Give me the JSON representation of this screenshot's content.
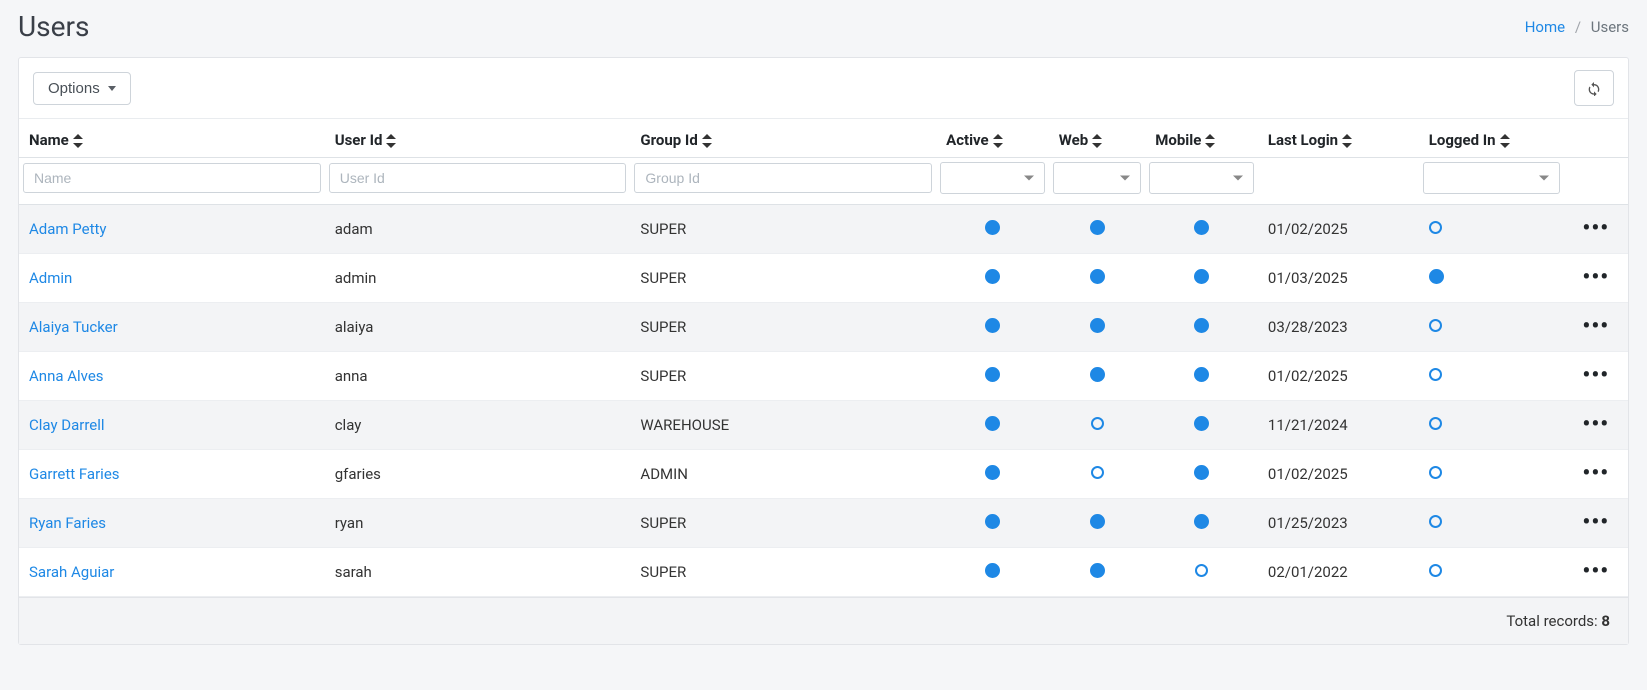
{
  "page": {
    "title": "Users"
  },
  "breadcrumb": {
    "home": "Home",
    "current": "Users"
  },
  "toolbar": {
    "options_label": "Options"
  },
  "table": {
    "columns": {
      "name": "Name",
      "user_id": "User Id",
      "group_id": "Group Id",
      "active": "Active",
      "web": "Web",
      "mobile": "Mobile",
      "last_login": "Last Login",
      "logged_in": "Logged In"
    },
    "filter_placeholders": {
      "name": "Name",
      "user_id": "User Id",
      "group_id": "Group Id"
    },
    "rows": [
      {
        "name": "Adam Petty",
        "user_id": "adam",
        "group_id": "SUPER",
        "active": true,
        "web": true,
        "mobile": true,
        "last_login": "01/02/2025",
        "logged_in": false
      },
      {
        "name": "Admin",
        "user_id": "admin",
        "group_id": "SUPER",
        "active": true,
        "web": true,
        "mobile": true,
        "last_login": "01/03/2025",
        "logged_in": true
      },
      {
        "name": "Alaiya Tucker",
        "user_id": "alaiya",
        "group_id": "SUPER",
        "active": true,
        "web": true,
        "mobile": true,
        "last_login": "03/28/2023",
        "logged_in": false
      },
      {
        "name": "Anna Alves",
        "user_id": "anna",
        "group_id": "SUPER",
        "active": true,
        "web": true,
        "mobile": true,
        "last_login": "01/02/2025",
        "logged_in": false
      },
      {
        "name": "Clay Darrell",
        "user_id": "clay",
        "group_id": "WAREHOUSE",
        "active": true,
        "web": false,
        "mobile": true,
        "last_login": "11/21/2024",
        "logged_in": false
      },
      {
        "name": "Garrett Faries",
        "user_id": "gfaries",
        "group_id": "ADMIN",
        "active": true,
        "web": false,
        "mobile": true,
        "last_login": "01/02/2025",
        "logged_in": false
      },
      {
        "name": "Ryan Faries",
        "user_id": "ryan",
        "group_id": "SUPER",
        "active": true,
        "web": true,
        "mobile": true,
        "last_login": "01/25/2023",
        "logged_in": false
      },
      {
        "name": "Sarah Aguiar",
        "user_id": "sarah",
        "group_id": "SUPER",
        "active": true,
        "web": true,
        "mobile": false,
        "last_login": "02/01/2022",
        "logged_in": false
      }
    ]
  },
  "footer": {
    "label": "Total records: ",
    "count": "8"
  },
  "colors": {
    "link": "#1e88e5",
    "dot_fill": "#1e88e5",
    "page_bg": "#f5f6f8",
    "stripe_bg": "#f3f4f6",
    "border": "#e2e4e8"
  }
}
